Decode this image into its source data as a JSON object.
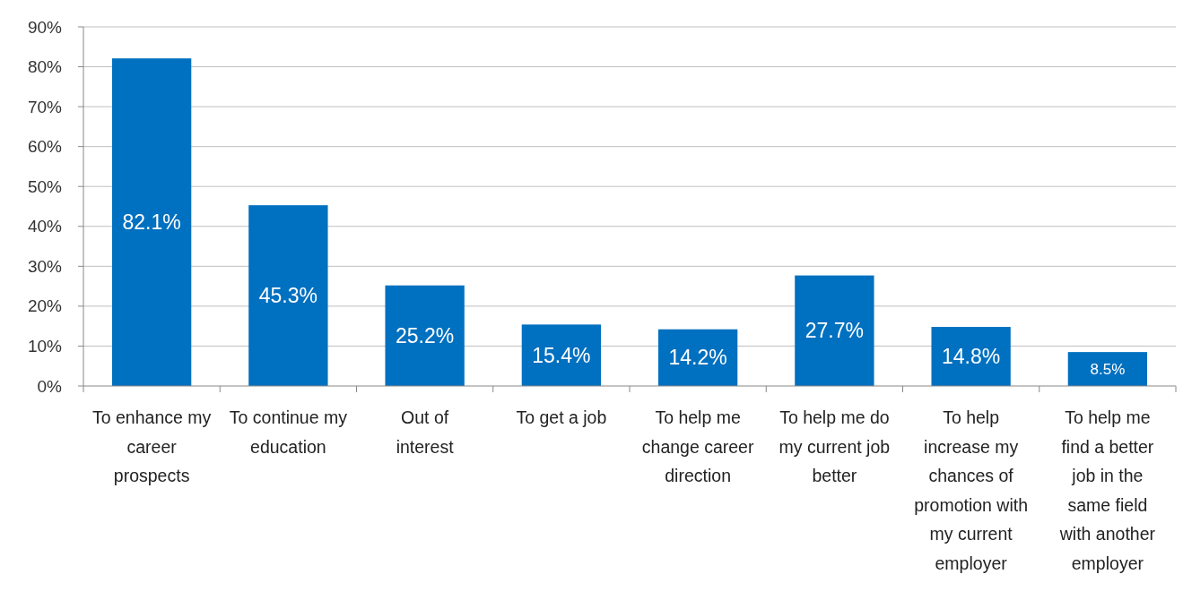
{
  "chart_data": {
    "type": "bar",
    "categories": [
      "To enhance my career prospects",
      "To continue my education",
      "Out of interest",
      "To get a job",
      "To help me change career direction",
      "To help me do my current job better",
      "To help increase my chances of promotion with my current employer",
      "To help me find a better job in the same field with another employer"
    ],
    "values": [
      82.1,
      45.3,
      25.2,
      15.4,
      14.2,
      27.7,
      14.8,
      8.5
    ],
    "value_labels": [
      "82.1%",
      "45.3%",
      "25.2%",
      "15.4%",
      "14.2%",
      "27.7%",
      "14.8%",
      "8.5%"
    ],
    "color": "#0070c0",
    "ylim": [
      0,
      90
    ],
    "yticks": [
      {
        "value": 0,
        "label": "0%"
      },
      {
        "value": 10,
        "label": "10%"
      },
      {
        "value": 20,
        "label": "20%"
      },
      {
        "value": 30,
        "label": "30%"
      },
      {
        "value": 40,
        "label": "40%"
      },
      {
        "value": 50,
        "label": "50%"
      },
      {
        "value": 60,
        "label": "60%"
      },
      {
        "value": 70,
        "label": "70%"
      },
      {
        "value": 80,
        "label": "80%"
      },
      {
        "value": 90,
        "label": "90%"
      }
    ],
    "grid": "y"
  }
}
